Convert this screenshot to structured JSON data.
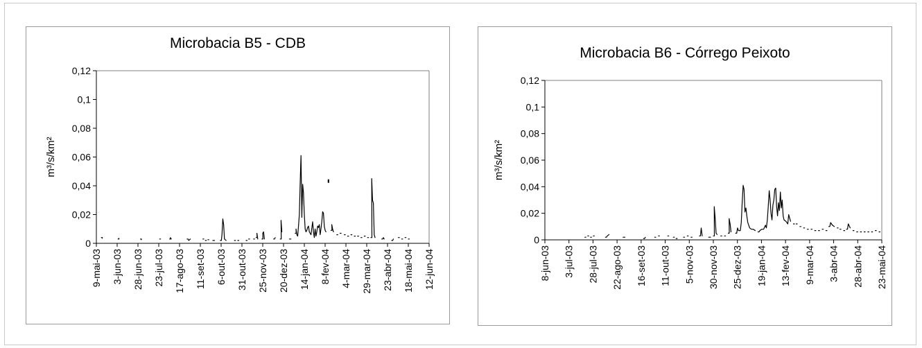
{
  "chart_data": [
    {
      "type": "line",
      "title": "Microbacia B5 - CDB",
      "ylabel": "m³/s/km²",
      "xlabel": "",
      "ylim": [
        0,
        0.12
      ],
      "yticks": [
        "0",
        "0,02",
        "0,04",
        "0,06",
        "0,08",
        "0,1",
        "0,12"
      ],
      "yticks_values": [
        0,
        0.02,
        0.04,
        0.06,
        0.08,
        0.1,
        0.12
      ],
      "xticks": [
        "9-mai-03",
        "3-jun-03",
        "28-jun-03",
        "23-jul-03",
        "17-ago-03",
        "11-set-03",
        "6-out-03",
        "31-out-03",
        "25-nov-03",
        "20-dez-03",
        "14-jan-04",
        "8-fev-04",
        "4-mar-04",
        "29-mar-04",
        "23-abr-04",
        "18-mai-04",
        "12-jun-04"
      ],
      "xlim": [
        "2003-05-09",
        "2004-06-12"
      ],
      "grid": false,
      "series": [
        {
          "values": [
            [
              "2003-05-15",
              0.004
            ],
            [
              "2003-05-16",
              0.0035
            ],
            [
              "2003-06-04",
              0.003
            ],
            [
              "2003-06-05",
              0.0035
            ],
            [
              "2003-07-01",
              0.003
            ],
            [
              "2003-07-02",
              0.0025
            ],
            [
              "2003-07-24",
              0.003
            ],
            [
              "2003-07-25",
              0.003
            ],
            [
              "2003-08-05",
              0.003
            ],
            [
              "2003-08-06",
              0.004
            ],
            [
              "2003-08-07",
              0.003
            ],
            [
              "2003-08-26",
              0.003
            ],
            [
              "2003-08-28",
              0.002
            ],
            [
              "2003-08-30",
              0.003
            ],
            [
              "2003-09-14",
              0.003
            ],
            [
              "2003-09-17",
              0.002
            ],
            [
              "2003-09-20",
              0.0025
            ],
            [
              "2003-09-26",
              0.002
            ],
            [
              "2003-09-28",
              0.002
            ],
            [
              "2003-10-05",
              0.002
            ],
            [
              "2003-10-07",
              0.006
            ],
            [
              "2003-10-08",
              0.017
            ],
            [
              "2003-10-09",
              0.013
            ],
            [
              "2003-10-10",
              0.003
            ],
            [
              "2003-10-12",
              0.002
            ],
            [
              "2003-10-22",
              0.002
            ],
            [
              "2003-10-26",
              0.002
            ],
            [
              "2003-11-05",
              0.002
            ],
            [
              "2003-11-08",
              0.003
            ],
            [
              "2003-11-14",
              0.003
            ],
            [
              "2003-11-17",
              0.004
            ],
            [
              "2003-11-18",
              0.007
            ],
            [
              "2003-11-19",
              0.003
            ],
            [
              "2003-11-24",
              0.003
            ],
            [
              "2003-11-25",
              0.007
            ],
            [
              "2003-11-26",
              0.008
            ],
            [
              "2003-11-27",
              0.003
            ],
            [
              "2003-12-08",
              0.003
            ],
            [
              "2003-12-10",
              0.004
            ],
            [
              "2003-12-16",
              0.003
            ],
            [
              "2003-12-17",
              0.016
            ],
            [
              "2003-12-18",
              0.008
            ],
            [
              "2003-12-27",
              0.003
            ],
            [
              "2003-12-29",
              0.003
            ],
            [
              "2004-01-03",
              0.007
            ],
            [
              "2004-01-04",
              0.01
            ],
            [
              "2004-01-05",
              0.006
            ],
            [
              "2004-01-06",
              0.005
            ],
            [
              "2004-01-07",
              0.012
            ],
            [
              "2004-01-08",
              0.02
            ],
            [
              "2004-01-09",
              0.042
            ],
            [
              "2004-01-10",
              0.061
            ],
            [
              "2004-01-11",
              0.018
            ],
            [
              "2004-01-12",
              0.041
            ],
            [
              "2004-01-13",
              0.035
            ],
            [
              "2004-01-14",
              0.02
            ],
            [
              "2004-01-15",
              0.01
            ],
            [
              "2004-01-16",
              0.008
            ],
            [
              "2004-01-17",
              0.009
            ],
            [
              "2004-01-18",
              0.011
            ],
            [
              "2004-01-19",
              0.012
            ],
            [
              "2004-01-20",
              0.008
            ],
            [
              "2004-01-21",
              0.007
            ],
            [
              "2004-01-22",
              0.006
            ],
            [
              "2004-01-24",
              0.015
            ],
            [
              "2004-01-25",
              0.008
            ],
            [
              "2004-01-26",
              0.004
            ],
            [
              "2004-01-27",
              0.01
            ],
            [
              "2004-01-28",
              0.005
            ],
            [
              "2004-01-29",
              0.008
            ],
            [
              "2004-01-30",
              0.012
            ],
            [
              "2004-01-31",
              0.011
            ],
            [
              "2004-02-01",
              0.013
            ],
            [
              "2004-02-02",
              0.006
            ],
            [
              "2004-02-03",
              0.01
            ],
            [
              "2004-02-04",
              0.015
            ],
            [
              "2004-02-05",
              0.022
            ],
            [
              "2004-02-06",
              0.021
            ],
            [
              "2004-02-07",
              0.012
            ],
            [
              "2004-02-08",
              0.009
            ],
            [
              "2004-02-09",
              0.008
            ],
            [
              "2004-02-15",
              0.009
            ],
            [
              "2004-02-16",
              0.013
            ],
            [
              "2004-02-17",
              0.01
            ],
            [
              "2004-02-18",
              0.008
            ],
            [
              "2004-02-22",
              0.006
            ],
            [
              "2004-02-26",
              0.007
            ],
            [
              "2004-03-02",
              0.006
            ],
            [
              "2004-03-06",
              0.005
            ],
            [
              "2004-03-10",
              0.006
            ],
            [
              "2004-03-14",
              0.005
            ],
            [
              "2004-03-18",
              0.005
            ],
            [
              "2004-03-22",
              0.004
            ],
            [
              "2004-03-26",
              0.005
            ],
            [
              "2004-03-30",
              0.004
            ],
            [
              "2004-04-03",
              0.004
            ],
            [
              "2004-04-04",
              0.045
            ],
            [
              "2004-04-05",
              0.03
            ],
            [
              "2004-04-06",
              0.028
            ],
            [
              "2004-04-07",
              0.006
            ],
            [
              "2004-04-08",
              0.004
            ],
            [
              "2004-04-16",
              0.003
            ],
            [
              "2004-04-18",
              0.004
            ],
            [
              "2004-04-19",
              0.003
            ],
            [
              "2004-04-28",
              0.002
            ],
            [
              "2004-04-30",
              0.003
            ],
            [
              "2004-05-06",
              0.004
            ],
            [
              "2004-05-10",
              0.003
            ],
            [
              "2004-05-14",
              0.004
            ],
            [
              "2004-05-18",
              0.003
            ]
          ],
          "isolated_points": [
            [
              "2004-02-12",
              0.044
            ],
            [
              "2004-02-12",
              0.043
            ]
          ]
        }
      ]
    },
    {
      "type": "line",
      "title": "Microbacia B6 - Córrego Peixoto",
      "ylabel": "m³/s/km²",
      "xlabel": "",
      "ylim": [
        0,
        0.12
      ],
      "yticks": [
        "0",
        "0,02",
        "0,04",
        "0,06",
        "0,08",
        "0,1",
        "0,12"
      ],
      "yticks_values": [
        0,
        0.02,
        0.04,
        0.06,
        0.08,
        0.1,
        0.12
      ],
      "xticks": [
        "8-jun-03",
        "3-jul-03",
        "28-jul-03",
        "22-ago-03",
        "16-set-03",
        "11-out-03",
        "5-nov-03",
        "30-nov-03",
        "25-dez-03",
        "19-jan-04",
        "13-fev-04",
        "9-mar-04",
        "3-abr-04",
        "28-abr-04",
        "23-mai-04"
      ],
      "xlim": [
        "2003-06-08",
        "2004-06-04"
      ],
      "grid": false,
      "series": [
        {
          "values": [
            [
              "2003-07-21",
              0.002
            ],
            [
              "2003-07-24",
              0.003
            ],
            [
              "2003-07-27",
              0.002
            ],
            [
              "2003-07-30",
              0.003
            ],
            [
              "2003-08-12",
              0.002
            ],
            [
              "2003-08-14",
              0.003
            ],
            [
              "2003-08-16",
              0.004
            ],
            [
              "2003-08-31",
              0.002
            ],
            [
              "2003-09-02",
              0.002
            ],
            [
              "2003-09-22",
              0.001
            ],
            [
              "2003-09-24",
              0.002
            ],
            [
              "2003-10-04",
              0.002
            ],
            [
              "2003-10-08",
              0.003
            ],
            [
              "2003-10-18",
              0.003
            ],
            [
              "2003-10-24",
              0.002
            ],
            [
              "2003-10-27",
              0.001
            ],
            [
              "2003-11-04",
              0.002
            ],
            [
              "2003-11-08",
              0.003
            ],
            [
              "2003-11-12",
              0.002
            ],
            [
              "2003-11-21",
              0.003
            ],
            [
              "2003-11-23",
              0.009
            ],
            [
              "2003-11-24",
              0.003
            ],
            [
              "2003-12-01",
              0.002
            ],
            [
              "2003-12-03",
              0.002
            ],
            [
              "2003-12-06",
              0.003
            ],
            [
              "2003-12-07",
              0.025
            ],
            [
              "2003-12-08",
              0.016
            ],
            [
              "2003-12-09",
              0.005
            ],
            [
              "2003-12-10",
              0.004
            ],
            [
              "2003-12-14",
              0.003
            ],
            [
              "2003-12-18",
              0.003
            ],
            [
              "2003-12-22",
              0.005
            ],
            [
              "2003-12-23",
              0.016
            ],
            [
              "2003-12-24",
              0.012
            ],
            [
              "2003-12-25",
              0.006
            ],
            [
              "2003-12-30",
              0.005
            ],
            [
              "2004-01-01",
              0.009
            ],
            [
              "2004-01-02",
              0.007
            ],
            [
              "2004-01-04",
              0.007
            ],
            [
              "2004-01-05",
              0.013
            ],
            [
              "2004-01-06",
              0.028
            ],
            [
              "2004-01-07",
              0.041
            ],
            [
              "2004-01-08",
              0.038
            ],
            [
              "2004-01-09",
              0.021
            ],
            [
              "2004-01-10",
              0.024
            ],
            [
              "2004-01-11",
              0.018
            ],
            [
              "2004-01-12",
              0.013
            ],
            [
              "2004-01-14",
              0.009
            ],
            [
              "2004-01-16",
              0.008
            ],
            [
              "2004-01-18",
              0.008
            ],
            [
              "2004-01-20",
              0.007
            ],
            [
              "2004-01-23",
              0.006
            ],
            [
              "2004-01-25",
              0.007
            ],
            [
              "2004-01-27",
              0.008
            ],
            [
              "2004-01-29",
              0.008
            ],
            [
              "2004-01-31",
              0.011
            ],
            [
              "2004-02-01",
              0.009
            ],
            [
              "2004-02-02",
              0.015
            ],
            [
              "2004-02-03",
              0.025
            ],
            [
              "2004-02-04",
              0.037
            ],
            [
              "2004-02-05",
              0.03
            ],
            [
              "2004-02-06",
              0.02
            ],
            [
              "2004-02-07",
              0.015
            ],
            [
              "2004-02-08",
              0.026
            ],
            [
              "2004-02-09",
              0.03
            ],
            [
              "2004-02-10",
              0.038
            ],
            [
              "2004-02-11",
              0.039
            ],
            [
              "2004-02-12",
              0.025
            ],
            [
              "2004-02-13",
              0.018
            ],
            [
              "2004-02-14",
              0.028
            ],
            [
              "2004-02-15",
              0.022
            ],
            [
              "2004-02-16",
              0.036
            ],
            [
              "2004-02-17",
              0.024
            ],
            [
              "2004-02-18",
              0.03
            ],
            [
              "2004-02-19",
              0.018
            ],
            [
              "2004-02-20",
              0.015
            ],
            [
              "2004-02-22",
              0.014
            ],
            [
              "2004-02-24",
              0.012
            ],
            [
              "2004-02-25",
              0.019
            ],
            [
              "2004-02-27",
              0.014
            ],
            [
              "2004-03-01",
              0.012
            ],
            [
              "2004-03-04",
              0.012
            ],
            [
              "2004-03-08",
              0.01
            ],
            [
              "2004-03-12",
              0.009
            ],
            [
              "2004-03-16",
              0.008
            ],
            [
              "2004-03-20",
              0.008
            ],
            [
              "2004-03-24",
              0.007
            ],
            [
              "2004-03-28",
              0.007
            ],
            [
              "2004-04-01",
              0.008
            ],
            [
              "2004-04-05",
              0.007
            ],
            [
              "2004-04-08",
              0.01
            ],
            [
              "2004-04-10",
              0.013
            ],
            [
              "2004-04-12",
              0.011
            ],
            [
              "2004-04-14",
              0.01
            ],
            [
              "2004-04-17",
              0.009
            ],
            [
              "2004-04-20",
              0.008
            ],
            [
              "2004-04-24",
              0.007
            ],
            [
              "2004-04-27",
              0.008
            ],
            [
              "2004-04-29",
              0.012
            ],
            [
              "2004-05-01",
              0.009
            ],
            [
              "2004-05-04",
              0.007
            ],
            [
              "2004-05-08",
              0.006
            ],
            [
              "2004-05-12",
              0.006
            ],
            [
              "2004-05-16",
              0.006
            ],
            [
              "2004-05-20",
              0.006
            ],
            [
              "2004-05-24",
              0.006
            ],
            [
              "2004-05-28",
              0.007
            ],
            [
              "2004-06-01",
              0.006
            ]
          ]
        }
      ]
    }
  ]
}
